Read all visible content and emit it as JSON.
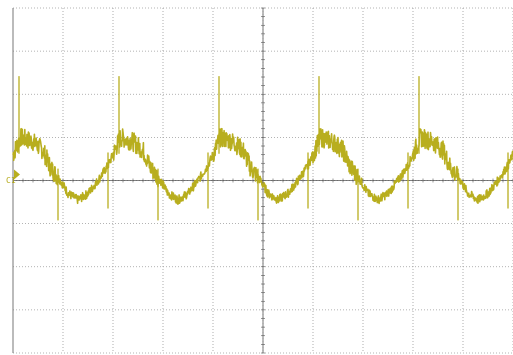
{
  "channel_marker_label": "C1",
  "trace_color": "#b8ae1e",
  "grid_color": "#9a9a9a",
  "center_axis_color": "#555555",
  "chart_data": {
    "type": "line",
    "title": "",
    "grid": true,
    "divisions": {
      "horizontal": 10,
      "vertical": 8
    },
    "xlim": [
      0,
      10
    ],
    "ylim": [
      -4,
      4
    ],
    "reference_level": 0,
    "cycles_on_screen": 5,
    "cycle_period_div": 2.0,
    "series": [
      {
        "x": [
          0,
          0.15,
          0.4,
          0.6,
          0.75,
          0.95,
          1.1,
          1.3,
          1.5,
          1.7,
          1.9,
          2.0
        ],
        "y": [
          0.6,
          1.0,
          0.9,
          0.7,
          0.3,
          0.0,
          -0.3,
          -0.45,
          -0.3,
          0.0,
          0.35,
          0.6
        ]
      }
    ]
  }
}
